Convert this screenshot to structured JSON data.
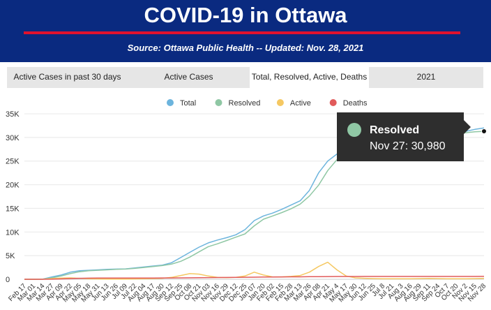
{
  "header": {
    "title": "COVID-19 in Ottawa",
    "source": "Source:  Ottawa Public Health -- Updated:  Nov. 28, 2021"
  },
  "tabs": [
    {
      "label": "Active Cases in past 30 days",
      "active": false
    },
    {
      "label": "Active Cases",
      "active": false
    },
    {
      "label": "Total, Resolved, Active, Deaths",
      "active": true
    },
    {
      "label": "2021",
      "active": false
    }
  ],
  "tooltip": {
    "series": "Resolved",
    "text": "Nov 27: 30,980",
    "color": "#8fc7a4"
  },
  "chart_data": {
    "type": "line",
    "ylim": [
      0,
      35000
    ],
    "yticks": [
      0,
      5000,
      10000,
      15000,
      20000,
      25000,
      30000,
      35000
    ],
    "ytick_labels": [
      "0",
      "5K",
      "10K",
      "15K",
      "20K",
      "25K",
      "30K",
      "35K"
    ],
    "grid": true,
    "legend_position": "top",
    "x": [
      "Feb 17",
      "Mar 01",
      "Mar 14",
      "Mar 27",
      "Apr 09",
      "Apr 22",
      "May 05",
      "May 18",
      "May 31",
      "Jun 13",
      "Jun 26",
      "Jul 09",
      "Jul 22",
      "Aug 04",
      "Aug 17",
      "Aug 30",
      "Sep 12",
      "Sep 25",
      "Oct 08",
      "Oct 21",
      "Nov 03",
      "Nov 16",
      "Nov 29",
      "Dec 12",
      "Dec 25",
      "Jan 07",
      "Jan 20",
      "Feb 02",
      "Feb 15",
      "Feb 28",
      "Mar 13",
      "Mar 26",
      "Apr 08",
      "Apr 21",
      "May 4",
      "May 17",
      "May 30",
      "Jun 12",
      "Jun 25",
      "Jul 8",
      "Jul 21",
      "Aug 3",
      "Aug 16",
      "Aug 29",
      "Sep 11",
      "Sep 24",
      "Oct 7",
      "Oct 20",
      "Nov 2",
      "Nov 15",
      "Nov 28"
    ],
    "series": [
      {
        "name": "Total",
        "color": "#6cb4dd",
        "values": [
          0,
          0,
          40,
          500,
          900,
          1500,
          1800,
          1900,
          2000,
          2100,
          2150,
          2200,
          2400,
          2600,
          2800,
          3000,
          3500,
          4600,
          5700,
          6800,
          7700,
          8300,
          8800,
          9400,
          10500,
          12400,
          13400,
          14000,
          14800,
          15700,
          16600,
          18800,
          22500,
          25000,
          26500,
          27500,
          28200,
          28700,
          28900,
          29000,
          29100,
          29300,
          29500,
          29800,
          30100,
          30400,
          30700,
          31000,
          31300,
          31700,
          32000
        ]
      },
      {
        "name": "Resolved",
        "color": "#8fc7a4",
        "values": [
          0,
          0,
          20,
          300,
          700,
          1200,
          1600,
          1800,
          1900,
          2000,
          2100,
          2150,
          2300,
          2500,
          2700,
          2900,
          3200,
          3800,
          4700,
          5800,
          6900,
          7500,
          8200,
          8900,
          9600,
          11300,
          12700,
          13400,
          14100,
          14900,
          15900,
          17600,
          19900,
          23000,
          25300,
          26700,
          27700,
          28300,
          28700,
          28900,
          29000,
          29200,
          29400,
          29700,
          29900,
          30200,
          30500,
          30800,
          31000,
          31200,
          31300
        ]
      },
      {
        "name": "Active",
        "color": "#f5c862",
        "values": [
          0,
          0,
          20,
          150,
          250,
          300,
          200,
          100,
          80,
          50,
          40,
          40,
          80,
          100,
          150,
          200,
          400,
          800,
          1200,
          1100,
          700,
          400,
          350,
          400,
          700,
          1500,
          900,
          500,
          500,
          600,
          800,
          1500,
          2700,
          3600,
          2000,
          700,
          300,
          200,
          150,
          120,
          100,
          100,
          120,
          150,
          180,
          150,
          120,
          100,
          100,
          150,
          200
        ]
      },
      {
        "name": "Deaths",
        "color": "#e15b5b",
        "values": [
          0,
          0,
          0,
          20,
          80,
          150,
          200,
          240,
          260,
          265,
          268,
          270,
          270,
          272,
          273,
          275,
          280,
          290,
          310,
          330,
          350,
          370,
          390,
          410,
          430,
          450,
          470,
          490,
          500,
          510,
          520,
          540,
          560,
          580,
          590,
          595,
          598,
          600,
          600,
          600,
          600,
          600,
          600,
          601,
          602,
          604,
          606,
          608,
          610,
          612,
          614
        ]
      }
    ]
  }
}
